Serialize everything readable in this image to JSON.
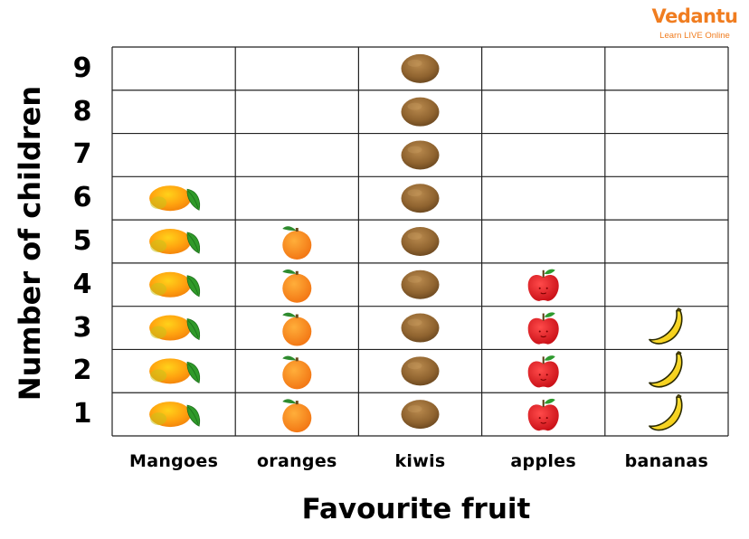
{
  "logo": {
    "title": "Vedantu",
    "tagline": "Learn LIVE Online",
    "color": "#f07d20"
  },
  "chart_data": {
    "type": "pictograph",
    "xlabel": "Favourite fruit",
    "ylabel": "Number of children",
    "y_ticks": [
      "1",
      "2",
      "3",
      "4",
      "5",
      "6",
      "7",
      "8",
      "9"
    ],
    "ylim": [
      0,
      9
    ],
    "grid": true,
    "categories": [
      "Mangoes",
      "oranges",
      "kiwis",
      "apples",
      "bananas"
    ],
    "values": [
      6,
      5,
      9,
      4,
      3
    ],
    "icons": [
      "mango-icon",
      "orange-icon",
      "kiwi-icon",
      "apple-icon",
      "banana-icon"
    ]
  }
}
